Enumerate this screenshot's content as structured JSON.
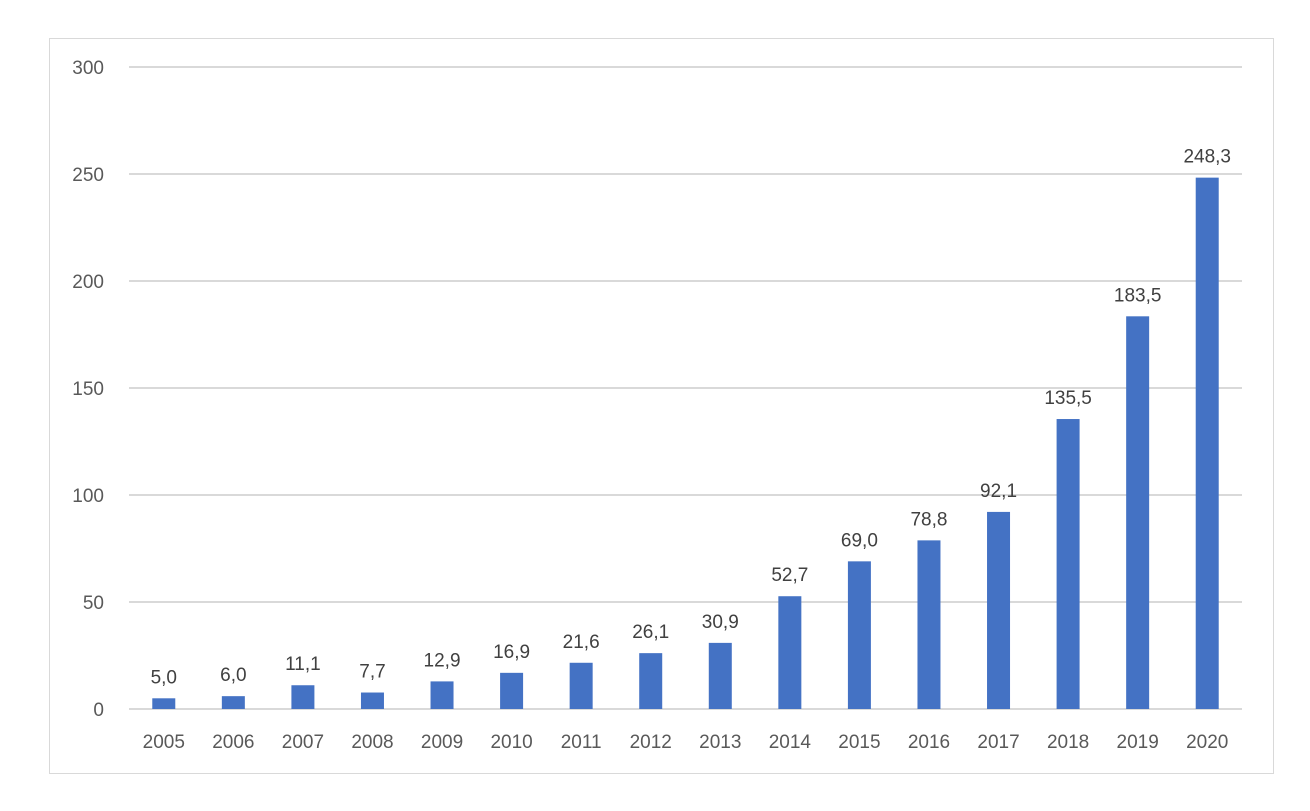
{
  "chart_data": {
    "type": "bar",
    "categories": [
      "2005",
      "2006",
      "2007",
      "2008",
      "2009",
      "2010",
      "2011",
      "2012",
      "2013",
      "2014",
      "2015",
      "2016",
      "2017",
      "2018",
      "2019",
      "2020"
    ],
    "values": [
      5.0,
      6.0,
      11.1,
      7.7,
      12.9,
      16.9,
      21.6,
      26.1,
      30.9,
      52.7,
      69.0,
      78.8,
      92.1,
      135.5,
      183.5,
      248.3
    ],
    "data_labels": [
      "5,0",
      "6,0",
      "11,1",
      "7,7",
      "12,9",
      "16,9",
      "21,6",
      "26,1",
      "30,9",
      "52,7",
      "69,0",
      "78,8",
      "92,1",
      "135,5",
      "183,5",
      "248,3"
    ],
    "title": "",
    "xlabel": "",
    "ylabel": "",
    "ylim": [
      0,
      300
    ],
    "yticks": [
      "0",
      "50",
      "100",
      "150",
      "200",
      "250",
      "300"
    ],
    "ytick_values": [
      0,
      50,
      100,
      150,
      200,
      250,
      300
    ],
    "grid": true,
    "legend": "none",
    "colors": {
      "bar": "#4472C4",
      "grid": "#d9d9d9",
      "frame": "#d9d9d9"
    }
  }
}
